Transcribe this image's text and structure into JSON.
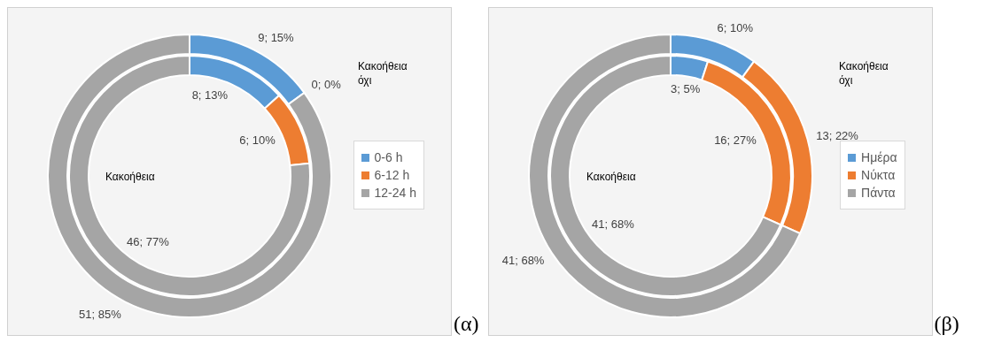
{
  "chart_data": [
    {
      "type": "donut",
      "categories": [
        "0-6 h",
        "6-12 h",
        "12-24 h"
      ],
      "legend": "right",
      "annotations": [
        "(α)"
      ],
      "series": [
        {
          "name": "Κακοήθεια",
          "colors": [
            "#5b9bd5",
            "#ed7d31",
            "#a5a5a5"
          ],
          "values": [
            8,
            6,
            46
          ],
          "value_labels": [
            "8; 13%",
            "6; 10%",
            "46; 77%"
          ]
        },
        {
          "name": "Κακοήθεια όχι",
          "colors": [
            "#5b9bd5",
            "#ed7d31",
            "#a5a5a5"
          ],
          "values": [
            9,
            0,
            51
          ],
          "value_labels": [
            "9; 15%",
            "0; 0%",
            "51; 85%"
          ]
        }
      ]
    },
    {
      "type": "donut",
      "categories": [
        "Ημέρα",
        "Νύκτα",
        "Πάντα"
      ],
      "legend": "right",
      "annotations": [
        "(β)"
      ],
      "series": [
        {
          "name": "Κακοήθεια",
          "colors": [
            "#5b9bd5",
            "#ed7d31",
            "#a5a5a5"
          ],
          "values": [
            3,
            16,
            41
          ],
          "value_labels": [
            "3; 5%",
            "16; 27%",
            "41; 68%"
          ]
        },
        {
          "name": "Κακοήθεια όχι",
          "colors": [
            "#5b9bd5",
            "#ed7d31",
            "#a5a5a5"
          ],
          "values": [
            6,
            13,
            41
          ],
          "value_labels": [
            "6; 10%",
            "13; 22%",
            "41; 68%"
          ]
        }
      ]
    }
  ]
}
